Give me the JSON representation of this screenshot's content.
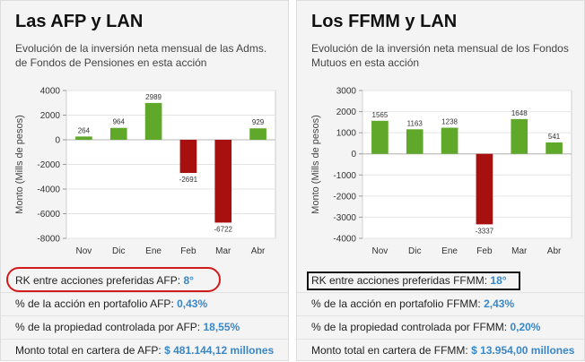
{
  "left_panel": {
    "title": "Las AFP y LAN",
    "subtitle": "Evolución de la inversión neta mensual de las Adms. de Fondos de Pensiones en esta acción",
    "stats": [
      {
        "label": "RK entre acciones preferidas AFP: ",
        "value": "8°"
      },
      {
        "label": "% de la acción en portafolio AFP: ",
        "value": "0,43%"
      },
      {
        "label": "% de la propiedad controlada por AFP: ",
        "value": "18,55%"
      },
      {
        "label": "Monto total en cartera de AFP: ",
        "value": "$ 481.144,12 millones"
      }
    ]
  },
  "right_panel": {
    "title": "Los FFMM y LAN",
    "subtitle": "Evolución de la inversión neta mensual de los Fondos Mutuos en esta acción",
    "stats": [
      {
        "label": "RK entre acciones preferidas FFMM: ",
        "value": "18°"
      },
      {
        "label": "% de la acción en portafolio FFMM: ",
        "value": "2,43%"
      },
      {
        "label": "% de la propiedad controlada por FFMM: ",
        "value": "0,20%"
      },
      {
        "label": "Monto total en cartera de FFMM: ",
        "value": "$ 13.954,00 millones"
      }
    ]
  },
  "colors": {
    "positive": "#5fa829",
    "negative": "#a81010",
    "highlight_left": "#d11a1a",
    "highlight_right": "#111111",
    "value_text": "#3a87c8"
  },
  "chart_data": [
    {
      "type": "bar",
      "ylabel": "Monto (Mills de pesos)",
      "categories": [
        "Nov",
        "Dic",
        "Ene",
        "Feb",
        "Mar",
        "Abr"
      ],
      "values": [
        264,
        964,
        2989,
        -2691,
        -6722,
        929
      ],
      "ylim": [
        -8000,
        4000
      ],
      "yticks": [
        "4000",
        "2000",
        "0",
        "-2000",
        "-4000",
        "-6000",
        "-8000"
      ],
      "grid": true
    },
    {
      "type": "bar",
      "ylabel": "Monto (Mills de pesos)",
      "categories": [
        "Nov",
        "Dic",
        "Ene",
        "Feb",
        "Mar",
        "Abr"
      ],
      "values": [
        1565,
        1163,
        1238,
        -3337,
        1648,
        541
      ],
      "ylim": [
        -4000,
        3000
      ],
      "yticks": [
        "3000",
        "2000",
        "1000",
        "0",
        "-1000",
        "-2000",
        "-3000",
        "-4000"
      ],
      "grid": true
    }
  ]
}
